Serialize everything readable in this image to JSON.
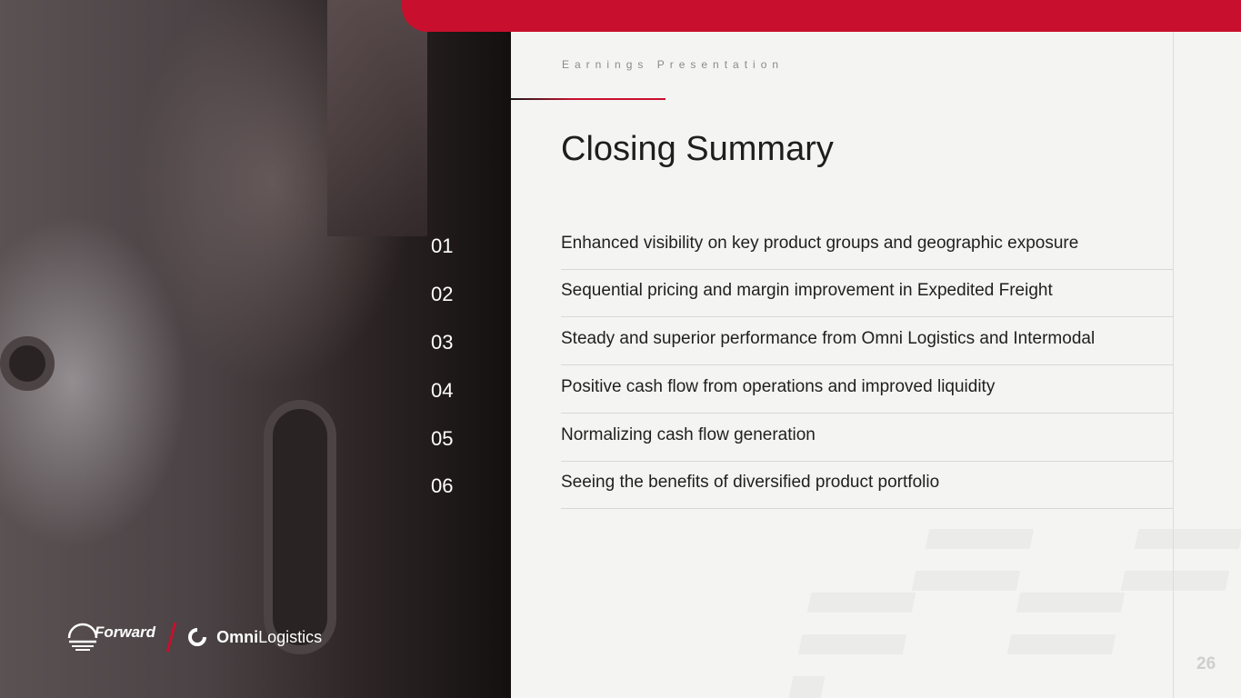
{
  "header": {
    "subtitle": "Earnings Presentation",
    "title": "Closing Summary"
  },
  "items": [
    {
      "num": "01",
      "text": "Enhanced visibility on key product groups and geographic exposure"
    },
    {
      "num": "02",
      "text": "Sequential pricing and margin improvement in Expedited Freight"
    },
    {
      "num": "03",
      "text": "Steady and superior performance from Omni Logistics and Intermodal"
    },
    {
      "num": "04",
      "text": "Positive cash flow from operations and improved liquidity"
    },
    {
      "num": "05",
      "text": "Normalizing cash flow generation"
    },
    {
      "num": "06",
      "text": "Seeing the benefits of diversified product portfolio"
    }
  ],
  "logos": {
    "forward": "Forward",
    "omni_bold": "Omni",
    "omni_light": "Logistics"
  },
  "page_number": "26",
  "colors": {
    "accent": "#c8102e",
    "background": "#f4f4f2"
  }
}
